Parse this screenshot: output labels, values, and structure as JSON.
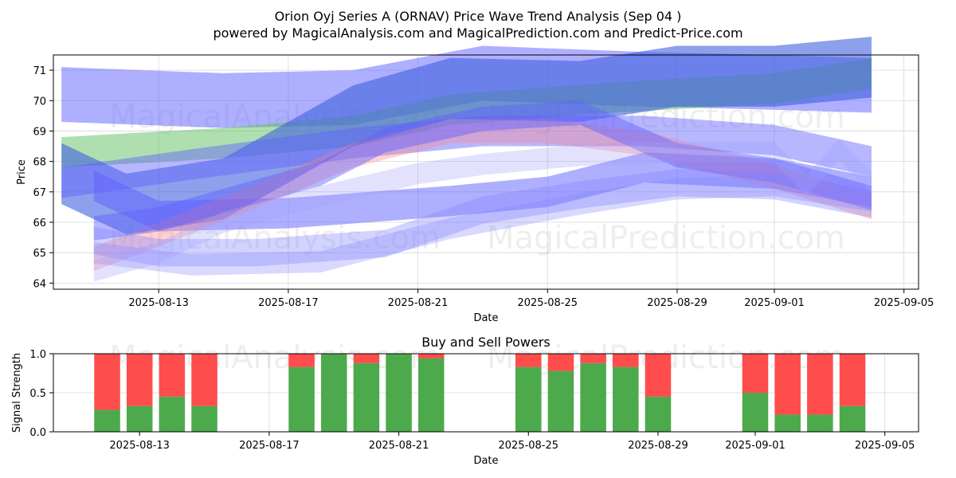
{
  "chart_data": [
    {
      "type": "area",
      "title": "Orion Oyj Series A (ORNAV) Price Wave Trend Analysis (Sep 04 )",
      "subtitle": "powered by MagicalAnalysis.com and MagicalPrediction.com and Predict-Price.com",
      "xlabel": "Date",
      "ylabel": "Price",
      "xlim": [
        "2025-08-10",
        "2025-09-05"
      ],
      "ylim": [
        63.8,
        71.5
      ],
      "x_ticks": [
        "2025-08-13",
        "2025-08-17",
        "2025-08-21",
        "2025-08-25",
        "2025-08-29",
        "2025-09-01",
        "2025-09-05"
      ],
      "y_ticks": [
        64,
        65,
        66,
        67,
        68,
        69,
        70,
        71
      ],
      "grid": true,
      "watermarks": [
        "MagicalAnalysis.com",
        "MagicalPrediction.com"
      ],
      "bands": [
        {
          "color": "#6060ff",
          "opacity": 0.5,
          "points": [
            [
              "2025-08-10",
              70.2
            ],
            [
              "2025-08-15",
              70.0
            ],
            [
              "2025-08-19",
              70.1
            ],
            [
              "2025-08-23",
              70.9
            ],
            [
              "2025-08-28",
              70.7
            ],
            [
              "2025-09-01",
              70.6
            ],
            [
              "2025-09-04",
              70.5
            ]
          ],
          "width": 1.8
        },
        {
          "color": "#60c060",
          "opacity": 0.5,
          "points": [
            [
              "2025-08-10",
              68.3
            ],
            [
              "2025-08-15",
              68.6
            ],
            [
              "2025-08-19",
              69.0
            ],
            [
              "2025-08-22",
              69.7
            ],
            [
              "2025-08-27",
              70.1
            ],
            [
              "2025-09-01",
              70.4
            ],
            [
              "2025-09-04",
              70.9
            ]
          ],
          "width": 1.0
        },
        {
          "color": "#4060e0",
          "opacity": 0.6,
          "points": [
            [
              "2025-08-10",
              67.6
            ],
            [
              "2025-08-12",
              66.6
            ],
            [
              "2025-08-15",
              67.1
            ],
            [
              "2025-08-19",
              69.5
            ],
            [
              "2025-08-22",
              70.4
            ],
            [
              "2025-08-26",
              70.3
            ],
            [
              "2025-08-29",
              70.8
            ],
            [
              "2025-09-01",
              70.8
            ],
            [
              "2025-09-04",
              71.1
            ]
          ],
          "width": 2.0
        },
        {
          "color": "#6060ff",
          "opacity": 0.45,
          "points": [
            [
              "2025-08-10",
              67.3
            ],
            [
              "2025-08-14",
              67.9
            ],
            [
              "2025-08-19",
              68.6
            ],
            [
              "2025-08-23",
              69.0
            ],
            [
              "2025-08-28",
              69.0
            ],
            [
              "2025-09-01",
              68.7
            ],
            [
              "2025-09-04",
              68.0
            ]
          ],
          "width": 1.0
        },
        {
          "color": "#6060ff",
          "opacity": 0.5,
          "points": [
            [
              "2025-08-11",
              67.2
            ],
            [
              "2025-08-13",
              66.2
            ],
            [
              "2025-08-17",
              66.3
            ],
            [
              "2025-08-22",
              66.7
            ],
            [
              "2025-08-25",
              67.0
            ],
            [
              "2025-08-28",
              67.8
            ],
            [
              "2025-09-01",
              67.6
            ],
            [
              "2025-09-04",
              67.0
            ]
          ],
          "width": 1.0
        },
        {
          "color": "#ff8080",
          "opacity": 0.35,
          "points": [
            [
              "2025-08-11",
              64.8
            ],
            [
              "2025-08-13",
              65.6
            ],
            [
              "2025-08-17",
              67.3
            ],
            [
              "2025-08-19",
              68.2
            ],
            [
              "2025-08-22",
              69.0
            ],
            [
              "2025-08-25",
              69.0
            ],
            [
              "2025-08-28",
              68.6
            ],
            [
              "2025-09-01",
              67.5
            ],
            [
              "2025-09-04",
              66.5
            ]
          ],
          "width": 0.8
        },
        {
          "color": "#6060ff",
          "opacity": 0.45,
          "points": [
            [
              "2025-08-11",
              65.8
            ],
            [
              "2025-08-13",
              66.1
            ],
            [
              "2025-08-16",
              67.0
            ],
            [
              "2025-08-18",
              67.6
            ],
            [
              "2025-08-20",
              68.7
            ],
            [
              "2025-08-23",
              69.4
            ],
            [
              "2025-08-26",
              69.6
            ],
            [
              "2025-08-29",
              68.2
            ],
            [
              "2025-09-01",
              67.7
            ],
            [
              "2025-09-04",
              66.8
            ]
          ],
          "width": 0.8
        },
        {
          "color": "#8080ff",
          "opacity": 0.35,
          "points": [
            [
              "2025-08-11",
              65.4
            ],
            [
              "2025-08-13",
              65.0
            ],
            [
              "2025-08-16",
              65.0
            ],
            [
              "2025-08-20",
              65.3
            ],
            [
              "2025-08-23",
              66.4
            ],
            [
              "2025-08-26",
              66.9
            ],
            [
              "2025-08-29",
              67.3
            ],
            [
              "2025-09-01",
              67.2
            ],
            [
              "2025-09-04",
              66.6
            ]
          ],
          "width": 0.9
        },
        {
          "color": "#8080ff",
          "opacity": 0.3,
          "points": [
            [
              "2025-08-11",
              65.0
            ],
            [
              "2025-08-14",
              64.6
            ],
            [
              "2025-08-18",
              64.7
            ],
            [
              "2025-08-22",
              65.8
            ],
            [
              "2025-08-26",
              66.6
            ],
            [
              "2025-08-29",
              67.1
            ],
            [
              "2025-09-01",
              67.2
            ],
            [
              "2025-09-04",
              66.7
            ]
          ],
          "width": 0.7
        },
        {
          "color": "#a0a0ff",
          "opacity": 0.3,
          "points": [
            [
              "2025-08-11",
              64.4
            ],
            [
              "2025-08-13",
              65.0
            ],
            [
              "2025-08-15",
              66.0
            ],
            [
              "2025-08-17",
              66.6
            ],
            [
              "2025-08-19",
              67.1
            ],
            [
              "2025-08-21",
              67.6
            ],
            [
              "2025-08-23",
              67.9
            ],
            [
              "2025-08-26",
              68.2
            ],
            [
              "2025-08-29",
              68.3
            ],
            [
              "2025-09-01",
              68.3
            ],
            [
              "2025-09-02",
              67.2
            ],
            [
              "2025-09-03",
              68.4
            ],
            [
              "2025-09-04",
              67.3
            ]
          ],
          "width": 0.7
        }
      ]
    },
    {
      "type": "bar",
      "title": "Buy and Sell Powers",
      "xlabel": "Date",
      "ylabel": "Signal Strength",
      "ylim": [
        0.0,
        1.0
      ],
      "y_ticks": [
        "0.0",
        "0.5",
        "1.0"
      ],
      "x_ticks": [
        "2025-08-13",
        "2025-08-17",
        "2025-08-21",
        "2025-08-25",
        "2025-08-29",
        "2025-09-01",
        "2025-09-05"
      ],
      "grid": true,
      "buy_color": "#4caa4c",
      "sell_color": "#ff4c4c",
      "bars": [
        {
          "date": "2025-08-12",
          "buy": 0.28
        },
        {
          "date": "2025-08-13",
          "buy": 0.33
        },
        {
          "date": "2025-08-14",
          "buy": 0.45
        },
        {
          "date": "2025-08-15",
          "buy": 0.33
        },
        {
          "date": "2025-08-18",
          "buy": 0.83
        },
        {
          "date": "2025-08-19",
          "buy": 1.0
        },
        {
          "date": "2025-08-20",
          "buy": 0.88
        },
        {
          "date": "2025-08-21",
          "buy": 1.0
        },
        {
          "date": "2025-08-22",
          "buy": 0.94
        },
        {
          "date": "2025-08-25",
          "buy": 0.83
        },
        {
          "date": "2025-08-26",
          "buy": 0.78
        },
        {
          "date": "2025-08-27",
          "buy": 0.88
        },
        {
          "date": "2025-08-28",
          "buy": 0.83
        },
        {
          "date": "2025-08-29",
          "buy": 0.45
        },
        {
          "date": "2025-09-01",
          "buy": 0.5
        },
        {
          "date": "2025-09-02",
          "buy": 0.22
        },
        {
          "date": "2025-09-03",
          "buy": 0.22
        },
        {
          "date": "2025-09-04",
          "buy": 0.33
        }
      ]
    }
  ]
}
